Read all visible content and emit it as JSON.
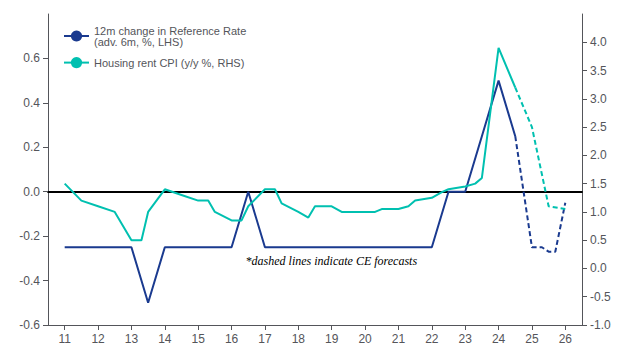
{
  "chart_data": {
    "type": "line",
    "annotation": "*dashed lines indicate CE forecasts",
    "xlim": [
      10.5,
      26.5
    ],
    "xticks": [
      11,
      12,
      13,
      14,
      15,
      16,
      17,
      18,
      19,
      20,
      21,
      22,
      23,
      24,
      25,
      26
    ],
    "ylim": [
      -0.6,
      0.8
    ],
    "yticks": [
      -0.6,
      -0.4,
      -0.2,
      {
        "value": 0.0,
        "label": "0.0"
      },
      0.2,
      0.4,
      0.6
    ],
    "y2lim": [
      -1.0,
      4.5
    ],
    "y2ticks": [
      {
        "value": -1.0,
        "label": "-1.0"
      },
      -0.5,
      {
        "value": 0.0,
        "label": "0.0"
      },
      0.5,
      {
        "value": 1.0,
        "label": "1.0"
      },
      1.5,
      {
        "value": 2.0,
        "label": "2.0"
      },
      2.5,
      {
        "value": 3.0,
        "label": "3.0"
      },
      3.5,
      {
        "value": 4.0,
        "label": "4.0"
      }
    ],
    "grid": false,
    "legend": "upper left",
    "series": [
      {
        "name": "12m change in Reference Rate\n(adv. 6m, %, LHS)",
        "color": "#1a3a8f",
        "axis": "y",
        "line_style": "solid",
        "x": [
          11,
          11.5,
          12,
          12.5,
          13,
          13.5,
          14,
          14.5,
          15,
          15.5,
          16,
          16.5,
          17,
          17.5,
          18,
          18.5,
          19,
          19.5,
          20,
          20.5,
          21,
          21.5,
          22,
          22.5,
          23,
          23.5,
          24,
          24.5
        ],
        "values": [
          -0.25,
          -0.25,
          -0.25,
          -0.25,
          -0.25,
          -0.5,
          -0.25,
          -0.25,
          -0.25,
          -0.25,
          -0.25,
          0.0,
          -0.25,
          -0.25,
          -0.25,
          -0.25,
          -0.25,
          -0.25,
          -0.25,
          -0.25,
          -0.25,
          -0.25,
          -0.25,
          0.0,
          0.0,
          0.25,
          0.5,
          0.25
        ]
      },
      {
        "name": "12m change in Reference Rate\n(adv. 6m, %, LHS)",
        "color": "#1a3a8f",
        "axis": "y",
        "line_style": "dashed",
        "x": [
          24.5,
          25.0,
          25.3,
          25.5,
          25.7,
          26.0
        ],
        "values": [
          0.25,
          -0.25,
          -0.25,
          -0.27,
          -0.27,
          -0.05
        ]
      },
      {
        "name": "Housing rent CPI (y/y %, RHS)",
        "color": "#00c0b0",
        "axis": "y2",
        "line_style": "solid",
        "x": [
          11,
          11.5,
          12,
          12.5,
          13,
          13.3,
          13.5,
          14,
          14.5,
          15,
          15.3,
          15.5,
          16,
          16.3,
          16.5,
          17,
          17.3,
          17.5,
          18,
          18.3,
          18.5,
          19,
          19.3,
          19.5,
          20,
          20.3,
          20.5,
          21,
          21.3,
          21.5,
          22,
          22.3,
          22.5,
          23,
          23.3,
          23.5,
          24,
          24.5
        ],
        "values": [
          1.5,
          1.2,
          1.1,
          1.0,
          0.5,
          0.5,
          1.0,
          1.4,
          1.3,
          1.2,
          1.2,
          1.0,
          0.85,
          0.85,
          1.1,
          1.4,
          1.4,
          1.15,
          1.0,
          0.9,
          1.1,
          1.1,
          1.0,
          1.0,
          1.0,
          1.0,
          1.05,
          1.05,
          1.1,
          1.2,
          1.25,
          1.35,
          1.4,
          1.45,
          1.5,
          1.6,
          3.9,
          3.2
        ]
      },
      {
        "name": "Housing rent CPI (y/y %, RHS)",
        "color": "#00c0b0",
        "axis": "y2",
        "line_style": "dashed",
        "x": [
          24.5,
          25.0,
          25.5,
          26.0
        ],
        "values": [
          3.2,
          2.5,
          1.1,
          1.05
        ]
      }
    ]
  }
}
